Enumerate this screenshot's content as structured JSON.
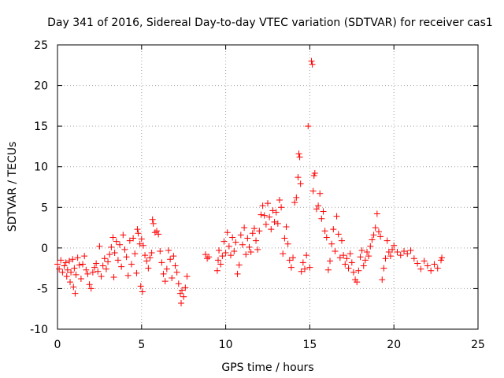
{
  "chart_data": {
    "type": "scatter",
    "title": "Day 341 of 2016, Sidereal Day-to-day VTEC variation (SDTVAR) for receiver cas1",
    "xlabel": "GPS time / hours",
    "ylabel": "SDTVAR / TECUs",
    "xlim": [
      0,
      25
    ],
    "ylim": [
      -10,
      25
    ],
    "xticks": [
      0,
      5,
      10,
      15,
      20,
      25
    ],
    "yticks": [
      -10,
      -5,
      0,
      5,
      10,
      15,
      20,
      25
    ],
    "xtick_labels": [
      "0",
      "5",
      "10",
      "15",
      "20",
      "25"
    ],
    "ytick_labels": [
      "-10",
      "-5",
      "0",
      "5",
      "10",
      "15",
      "20",
      "25"
    ],
    "grid": true,
    "marker": "+",
    "marker_color": "#ff0000",
    "series": [
      {
        "name": "SDTVAR",
        "points": [
          [
            0.0,
            -2.0
          ],
          [
            0.1,
            -2.6
          ],
          [
            0.2,
            -1.5
          ],
          [
            0.3,
            -3.0
          ],
          [
            0.4,
            -2.2
          ],
          [
            0.5,
            -1.8
          ],
          [
            0.55,
            -3.5
          ],
          [
            0.6,
            -2.7
          ],
          [
            0.7,
            -1.6
          ],
          [
            0.75,
            -4.2
          ],
          [
            0.8,
            -3.0
          ],
          [
            0.9,
            -1.4
          ],
          [
            0.95,
            -4.8
          ],
          [
            1.0,
            -2.5
          ],
          [
            1.05,
            -5.6
          ],
          [
            1.1,
            -3.3
          ],
          [
            1.2,
            -1.2
          ],
          [
            1.3,
            -2.1
          ],
          [
            1.4,
            -3.8
          ],
          [
            1.5,
            -2.0
          ],
          [
            1.6,
            -1.0
          ],
          [
            1.7,
            -2.7
          ],
          [
            1.8,
            -3.2
          ],
          [
            1.9,
            -4.5
          ],
          [
            2.0,
            -5.0
          ],
          [
            2.1,
            -3.0
          ],
          [
            2.2,
            -2.4
          ],
          [
            2.3,
            -1.9
          ],
          [
            2.4,
            -2.9
          ],
          [
            2.5,
            0.2
          ],
          [
            2.6,
            -3.5
          ],
          [
            2.7,
            -2.2
          ],
          [
            2.8,
            -1.3
          ],
          [
            2.9,
            -2.6
          ],
          [
            3.0,
            -1.7
          ],
          [
            3.1,
            -0.8
          ],
          [
            3.2,
            0.1
          ],
          [
            3.3,
            1.3
          ],
          [
            3.35,
            -3.6
          ],
          [
            3.4,
            -0.6
          ],
          [
            3.5,
            0.8
          ],
          [
            3.6,
            -1.5
          ],
          [
            3.7,
            0.4
          ],
          [
            3.8,
            -2.3
          ],
          [
            3.9,
            1.6
          ],
          [
            4.0,
            -0.2
          ],
          [
            4.1,
            -1.1
          ],
          [
            4.2,
            -3.4
          ],
          [
            4.3,
            0.9
          ],
          [
            4.4,
            -2.0
          ],
          [
            4.5,
            1.2
          ],
          [
            4.6,
            -0.7
          ],
          [
            4.7,
            -3.1
          ],
          [
            4.75,
            2.3
          ],
          [
            4.8,
            1.8
          ],
          [
            4.9,
            0.5
          ],
          [
            4.95,
            -4.7
          ],
          [
            5.0,
            1.1
          ],
          [
            5.05,
            -5.4
          ],
          [
            5.1,
            0.3
          ],
          [
            5.2,
            -0.9
          ],
          [
            5.3,
            -1.6
          ],
          [
            5.4,
            -2.5
          ],
          [
            5.5,
            -1.2
          ],
          [
            5.6,
            -0.6
          ],
          [
            5.65,
            3.5
          ],
          [
            5.7,
            3.0
          ],
          [
            5.8,
            1.9
          ],
          [
            5.9,
            2.1
          ],
          [
            6.0,
            1.7
          ],
          [
            6.1,
            -0.4
          ],
          [
            6.2,
            -1.8
          ],
          [
            6.3,
            -3.2
          ],
          [
            6.4,
            -4.1
          ],
          [
            6.5,
            -2.6
          ],
          [
            6.6,
            -0.3
          ],
          [
            6.7,
            -1.4
          ],
          [
            6.8,
            -3.7
          ],
          [
            6.9,
            -1.0
          ],
          [
            7.0,
            -2.2
          ],
          [
            7.1,
            -3.0
          ],
          [
            7.2,
            -4.4
          ],
          [
            7.3,
            -5.6
          ],
          [
            7.35,
            -6.8
          ],
          [
            7.4,
            -5.2
          ],
          [
            7.5,
            -6.0
          ],
          [
            7.6,
            -4.9
          ],
          [
            7.7,
            -3.5
          ],
          [
            8.8,
            -0.8
          ],
          [
            8.9,
            -1.3
          ],
          [
            9.0,
            -1.1
          ],
          [
            9.5,
            -2.8
          ],
          [
            9.55,
            -1.5
          ],
          [
            9.6,
            -0.3
          ],
          [
            9.7,
            -2.0
          ],
          [
            9.8,
            -1.0
          ],
          [
            9.9,
            0.8
          ],
          [
            10.0,
            -0.6
          ],
          [
            10.1,
            1.9
          ],
          [
            10.2,
            0.2
          ],
          [
            10.3,
            -0.9
          ],
          [
            10.4,
            1.3
          ],
          [
            10.5,
            -0.4
          ],
          [
            10.6,
            0.7
          ],
          [
            10.7,
            -3.2
          ],
          [
            10.8,
            -2.1
          ],
          [
            10.9,
            1.6
          ],
          [
            11.0,
            0.4
          ],
          [
            11.1,
            2.5
          ],
          [
            11.2,
            -0.8
          ],
          [
            11.3,
            1.2
          ],
          [
            11.4,
            0.1
          ],
          [
            11.5,
            -0.5
          ],
          [
            11.6,
            1.8
          ],
          [
            11.7,
            2.4
          ],
          [
            11.8,
            0.9
          ],
          [
            11.9,
            -0.2
          ],
          [
            12.0,
            2.1
          ],
          [
            12.1,
            4.1
          ],
          [
            12.2,
            5.2
          ],
          [
            12.3,
            4.0
          ],
          [
            12.4,
            2.9
          ],
          [
            12.5,
            5.5
          ],
          [
            12.6,
            3.8
          ],
          [
            12.7,
            2.3
          ],
          [
            12.8,
            4.6
          ],
          [
            12.9,
            3.2
          ],
          [
            13.0,
            4.4
          ],
          [
            13.1,
            3.0
          ],
          [
            13.2,
            5.9
          ],
          [
            13.3,
            5.0
          ],
          [
            13.4,
            -0.7
          ],
          [
            13.5,
            1.2
          ],
          [
            13.6,
            2.6
          ],
          [
            13.7,
            0.5
          ],
          [
            13.8,
            -1.5
          ],
          [
            13.9,
            -2.4
          ],
          [
            14.0,
            -1.2
          ],
          [
            14.1,
            5.6
          ],
          [
            14.2,
            6.2
          ],
          [
            14.3,
            8.7
          ],
          [
            14.35,
            11.6
          ],
          [
            14.4,
            11.2
          ],
          [
            14.45,
            7.9
          ],
          [
            14.5,
            -2.9
          ],
          [
            14.6,
            -1.8
          ],
          [
            14.7,
            -2.6
          ],
          [
            14.8,
            -0.9
          ],
          [
            14.9,
            15.0
          ],
          [
            15.0,
            -2.4
          ],
          [
            15.1,
            23.0
          ],
          [
            15.15,
            22.6
          ],
          [
            15.2,
            7.0
          ],
          [
            15.25,
            8.9
          ],
          [
            15.3,
            9.2
          ],
          [
            15.4,
            4.8
          ],
          [
            15.5,
            5.2
          ],
          [
            15.6,
            6.7
          ],
          [
            15.7,
            3.6
          ],
          [
            15.8,
            4.5
          ],
          [
            15.9,
            2.1
          ],
          [
            16.0,
            1.3
          ],
          [
            16.1,
            -2.7
          ],
          [
            16.2,
            -1.6
          ],
          [
            16.3,
            0.5
          ],
          [
            16.4,
            2.3
          ],
          [
            16.5,
            -0.4
          ],
          [
            16.6,
            3.9
          ],
          [
            16.7,
            1.7
          ],
          [
            16.8,
            -1.2
          ],
          [
            16.9,
            0.9
          ],
          [
            17.0,
            -0.9
          ],
          [
            17.1,
            -2.0
          ],
          [
            17.2,
            -1.3
          ],
          [
            17.3,
            -2.5
          ],
          [
            17.4,
            -0.7
          ],
          [
            17.5,
            -1.8
          ],
          [
            17.6,
            -3.0
          ],
          [
            17.7,
            -3.9
          ],
          [
            17.8,
            -4.2
          ],
          [
            17.9,
            -2.8
          ],
          [
            18.0,
            -1.1
          ],
          [
            18.1,
            -0.3
          ],
          [
            18.2,
            -2.2
          ],
          [
            18.3,
            -1.5
          ],
          [
            18.4,
            -0.5
          ],
          [
            18.5,
            -1.0
          ],
          [
            18.6,
            0.2
          ],
          [
            18.7,
            1.0
          ],
          [
            18.8,
            1.6
          ],
          [
            18.9,
            2.5
          ],
          [
            19.0,
            4.2
          ],
          [
            19.1,
            2.0
          ],
          [
            19.2,
            1.4
          ],
          [
            19.3,
            -3.9
          ],
          [
            19.4,
            -2.5
          ],
          [
            19.5,
            -1.3
          ],
          [
            19.6,
            0.9
          ],
          [
            19.7,
            -0.5
          ],
          [
            19.8,
            -1.0
          ],
          [
            19.9,
            -0.2
          ],
          [
            20.0,
            0.3
          ],
          [
            20.2,
            -0.5
          ],
          [
            20.4,
            -0.9
          ],
          [
            20.6,
            -0.4
          ],
          [
            20.8,
            -0.7
          ],
          [
            21.0,
            -0.3
          ],
          [
            21.2,
            -1.3
          ],
          [
            21.4,
            -1.9
          ],
          [
            21.6,
            -2.6
          ],
          [
            21.8,
            -1.6
          ],
          [
            22.0,
            -2.2
          ],
          [
            22.2,
            -2.8
          ],
          [
            22.4,
            -2.0
          ],
          [
            22.6,
            -2.5
          ],
          [
            22.8,
            -1.5
          ],
          [
            22.85,
            -1.2
          ]
        ]
      }
    ]
  }
}
